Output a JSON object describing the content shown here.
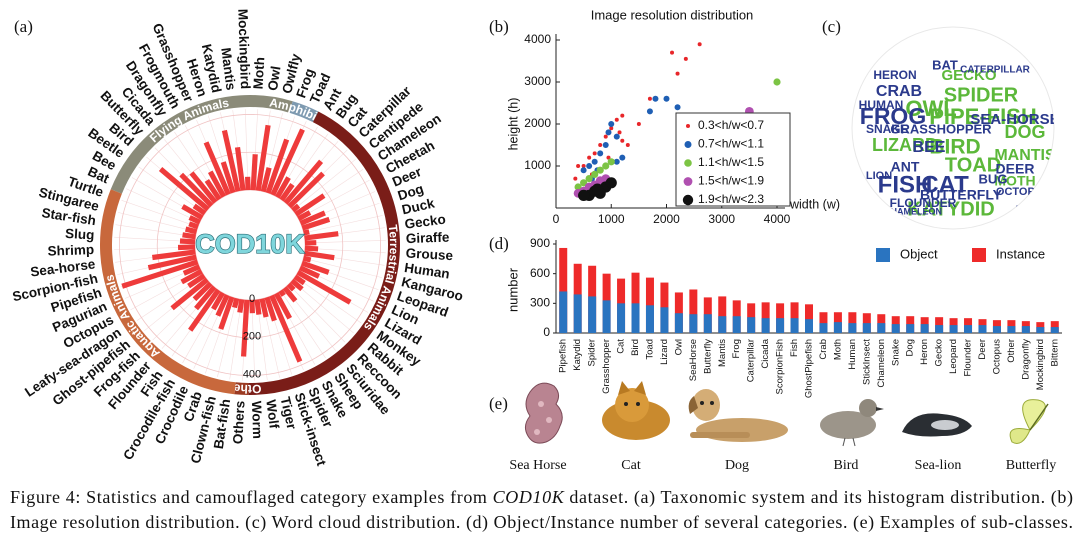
{
  "panel_labels": [
    "(a)",
    "(b)",
    "(c)",
    "(d)",
    "(e)"
  ],
  "chart_data": [
    {
      "type": "radial_bar",
      "center_label": "COD10K",
      "color": "#ee3b3b",
      "rlim": [
        0,
        450
      ],
      "rticks": [
        0,
        200,
        400
      ],
      "groups": [
        {
          "name": "Flying Animals",
          "color": "#8b8b79",
          "categories": [
            "Bat",
            "Bee",
            "Beetle",
            "Bird",
            "Butterfly",
            "Cicada",
            "Dragonfly",
            "Frogmouth",
            "Grasshopper",
            "Heron",
            "Katydid",
            "Mantis",
            "Mockingbird",
            "Moth",
            "Owl",
            "Owlfly"
          ],
          "values": [
            60,
            120,
            70,
            330,
            230,
            200,
            120,
            150,
            300,
            170,
            330,
            230,
            70,
            190,
            350,
            130
          ]
        },
        {
          "name": "Amphibians",
          "color": "#7e9ab0",
          "categories": [
            "Frog",
            "Toad"
          ],
          "values": [
            300,
            380
          ]
        },
        {
          "name": "Terrestrial Animals",
          "color": "#7a1d18",
          "categories": [
            "Ant",
            "Bug",
            "Cat",
            "Caterpillar",
            "Centipede",
            "Chameleon",
            "Cheetah",
            "Deer",
            "Dog",
            "Duck",
            "Gecko",
            "Giraffe",
            "Grouse",
            "Human",
            "Kangaroo",
            "Leopard",
            "Lion",
            "Lizard",
            "Monkey",
            "Rabbit",
            "Reccoon",
            "Sciuridae",
            "Sheep",
            "Snake",
            "Spider",
            "Stick-insect",
            "Tiger",
            "Wolf",
            "Worm"
          ],
          "values": [
            120,
            100,
            290,
            250,
            40,
            180,
            70,
            140,
            150,
            30,
            180,
            60,
            70,
            160,
            40,
            150,
            110,
            320,
            60,
            70,
            40,
            90,
            30,
            150,
            380,
            130,
            100,
            80,
            70
          ]
        },
        {
          "name": "Others",
          "color": "#9b3a22",
          "categories": [
            "Others"
          ],
          "values": [
            300
          ]
        },
        {
          "name": "Aquatic Animals",
          "color": "#c8683c",
          "categories": [
            "Bat-fish",
            "Clown-fish",
            "Crab",
            "Crocodile",
            "Crocodile-fish",
            "Fish",
            "Flounder",
            "Frog-fish",
            "Ghost-pipefish",
            "Leafy-sea-dragon",
            "Octopus",
            "Pagurian",
            "Pipefish",
            "Scorpion-fish",
            "Sea-horse",
            "Shrimp",
            "Slug",
            "Star-fish",
            "Stingaree",
            "Turtle"
          ],
          "values": [
            70,
            50,
            180,
            120,
            100,
            260,
            150,
            120,
            240,
            100,
            120,
            90,
            420,
            260,
            230,
            90,
            80,
            70,
            60,
            50
          ]
        }
      ]
    },
    {
      "type": "scatter",
      "title": "Image resolution distribution",
      "x_label": "width (w)",
      "y_label": "height (h)",
      "xlim": [
        0,
        4000
      ],
      "ylim": [
        0,
        4000
      ],
      "xticks": [
        0,
        1000,
        2000,
        3000,
        4000
      ],
      "yticks": [
        1000,
        2000,
        3000,
        4000
      ],
      "legend": "bottom-right",
      "series": [
        {
          "name": "0.3<h/w<0.7",
          "color": "#e8262a",
          "x": [
            2600,
            2100,
            2350,
            2200,
            1700,
            1200,
            1100,
            1000,
            1150,
            900,
            800,
            1200,
            700,
            600,
            500,
            400,
            1300,
            1500,
            950,
            650,
            350
          ],
          "y": [
            3900,
            3700,
            3550,
            3200,
            2600,
            2200,
            2100,
            1900,
            1800,
            1700,
            1500,
            1600,
            1300,
            1200,
            1000,
            1000,
            1500,
            2000,
            1200,
            800,
            700
          ]
        },
        {
          "name": "0.7<h/w<1.1",
          "color": "#1f5fb4",
          "x": [
            1000,
            950,
            1100,
            900,
            800,
            700,
            600,
            500,
            1800,
            2200,
            2000,
            1700,
            1200,
            1100,
            750,
            650,
            400
          ],
          "y": [
            2000,
            1800,
            1700,
            1500,
            1300,
            1100,
            1000,
            900,
            2600,
            2400,
            2600,
            2300,
            1200,
            1100,
            900,
            700,
            500
          ]
        },
        {
          "name": "1.1<h/w<1.5",
          "color": "#7cc444",
          "x": [
            4000,
            600,
            800,
            500,
            1000,
            700,
            400,
            900
          ],
          "y": [
            3000,
            700,
            900,
            600,
            1100,
            800,
            500,
            1000
          ]
        },
        {
          "name": "1.5<h/w<1.9",
          "color": "#b050b0",
          "x": [
            3500,
            600,
            700,
            800,
            500,
            900,
            400
          ],
          "y": [
            2300,
            500,
            550,
            650,
            400,
            700,
            350
          ]
        },
        {
          "name": "1.9<h/w<2.3",
          "color": "#111111",
          "x": [
            600,
            700,
            900,
            800,
            500,
            1000,
            750
          ],
          "y": [
            300,
            400,
            500,
            350,
            300,
            600,
            450
          ]
        }
      ]
    },
    {
      "type": "wordcloud",
      "words": [
        "SPIDER",
        "PIPE-FISH",
        "FISH",
        "OWL",
        "BIRD",
        "DOG",
        "TOAD",
        "CAT",
        "LIZARD",
        "KATYDID",
        "FROG",
        "CRAB",
        "MANTIS",
        "GECKO",
        "SEA-HORSE",
        "GRASSHOPPER",
        "CATERPILLAR",
        "BEE",
        "BUTTERFLY",
        "MOTH",
        "TIGER",
        "CICADA",
        "DEER",
        "HUMAN",
        "HERON",
        "OCTOPUS",
        "SNAKE",
        "ANT",
        "BUG",
        "BAT",
        "LION",
        "FLOUNDER",
        "CHAMELEON"
      ]
    },
    {
      "type": "bar",
      "y_label": "number",
      "ylim": [
        0,
        900
      ],
      "yticks": [
        0,
        300,
        600,
        900
      ],
      "legend": "top-right",
      "categories": [
        "Pipefish",
        "Katydid",
        "Spider",
        "Grasshopper",
        "Cat",
        "Bird",
        "Toad",
        "Lizard",
        "Owl",
        "SeaHorse",
        "Butterfly",
        "Mantis",
        "Frog",
        "Caterpillar",
        "Cicada",
        "ScorpionFish",
        "Fish",
        "GhostPipefish",
        "Crab",
        "Moth",
        "Human",
        "StickInsect",
        "Chameleon",
        "Snake",
        "Dog",
        "Heron",
        "Gecko",
        "Leopard",
        "Flounder",
        "Deer",
        "Octopus",
        "Other",
        "Dragonfly",
        "Mockingbird",
        "Bittern"
      ],
      "series": [
        {
          "name": "Object",
          "color": "#2a74c0",
          "values": [
            420,
            390,
            370,
            330,
            300,
            300,
            280,
            260,
            200,
            190,
            190,
            170,
            170,
            160,
            150,
            150,
            150,
            140,
            100,
            110,
            100,
            100,
            100,
            90,
            90,
            90,
            80,
            80,
            80,
            80,
            70,
            70,
            70,
            60,
            60
          ]
        },
        {
          "name": "Instance",
          "color": "#ee2a2a",
          "values": [
            860,
            700,
            680,
            600,
            550,
            610,
            560,
            510,
            410,
            440,
            360,
            370,
            330,
            300,
            310,
            300,
            310,
            290,
            210,
            210,
            210,
            200,
            190,
            170,
            170,
            160,
            160,
            150,
            150,
            140,
            130,
            130,
            120,
            110,
            120
          ]
        }
      ]
    }
  ],
  "examples": [
    "Sea Horse",
    "Cat",
    "Dog",
    "Bird",
    "Sea-lion",
    "Butterfly"
  ],
  "caption": {
    "label": "Figure 4:",
    "text_1": " Statistics and camouflaged category examples from ",
    "dataset": "COD10K",
    "text_2": " dataset. (a) Taxonomic system and its histogram distribution. (b)",
    "text_3": "Image resolution distribution. (c) Word cloud distribution. (d) Object/Instance number of several categories. (e) Examples of sub-classes."
  }
}
